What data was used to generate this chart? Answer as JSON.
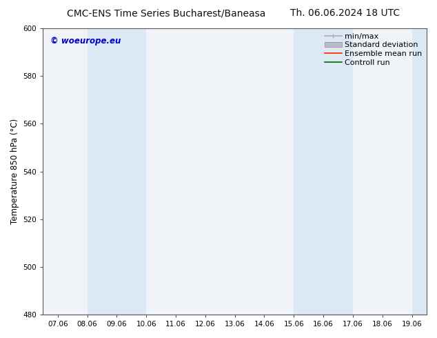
{
  "title_left": "CMC-ENS Time Series Bucharest/Baneasa",
  "title_right": "Th. 06.06.2024 18 UTC",
  "ylabel": "Temperature 850 hPa (°C)",
  "watermark": "© woeurope.eu",
  "watermark_color": "#0000cc",
  "ylim": [
    480,
    600
  ],
  "yticks": [
    480,
    500,
    520,
    540,
    560,
    580,
    600
  ],
  "xtick_labels": [
    "07.06",
    "08.06",
    "09.06",
    "10.06",
    "11.06",
    "12.06",
    "13.06",
    "14.06",
    "15.06",
    "16.06",
    "17.06",
    "18.06",
    "19.06"
  ],
  "shaded_ranges": [
    [
      1,
      2
    ],
    [
      2,
      3
    ],
    [
      8,
      9
    ],
    [
      9,
      10
    ],
    [
      12.0,
      12.6
    ]
  ],
  "band_color": "#dce9f5",
  "bg_color": "#ffffff",
  "plot_bg_color": "#f0f4f8",
  "title_fontsize": 10,
  "axis_fontsize": 8.5,
  "tick_fontsize": 7.5,
  "legend_fontsize": 8
}
